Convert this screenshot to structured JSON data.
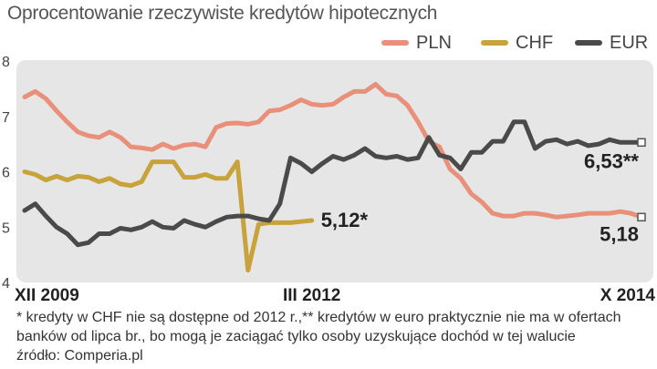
{
  "title": "Oprocentowanie rzeczywiste kredytów hipotecznych",
  "footnote": {
    "line1": "* kredyty w CHF nie są dostępne od 2012 r.,** kredytów w euro praktycznie nie ma w ofertach",
    "line2": "banków od lipca br., bo mogą je zaciągać tylko osoby uzyskujące dochód w tej walucie",
    "source": "źródło: Comperia.pl"
  },
  "chart_data": {
    "type": "line",
    "title": "Oprocentowanie rzeczywiste kredytów hipotecznych",
    "ylim": [
      4,
      8
    ],
    "yticks": [
      4,
      5,
      6,
      7,
      8
    ],
    "xlim": [
      0,
      58
    ],
    "x_tick_labels": [
      {
        "x": 0,
        "label": "XII 2009"
      },
      {
        "x": 27,
        "label": "III 2012"
      },
      {
        "x": 58,
        "label": "X 2014"
      }
    ],
    "legend_position": "top-right",
    "grid": false,
    "series": [
      {
        "name": "PLN",
        "color": "#e9907a",
        "x": [
          0,
          1,
          2,
          3,
          4,
          5,
          6,
          7,
          8,
          9,
          10,
          11,
          12,
          13,
          14,
          15,
          16,
          17,
          18,
          19,
          20,
          21,
          22,
          23,
          24,
          25,
          26,
          27,
          28,
          29,
          30,
          31,
          32,
          33,
          34,
          35,
          36,
          37,
          38,
          39,
          40,
          41,
          42,
          43,
          44,
          45,
          46,
          47,
          48,
          49,
          50,
          51,
          52,
          53,
          54,
          55,
          56,
          57,
          58
        ],
        "values": [
          7.35,
          7.45,
          7.32,
          7.1,
          6.9,
          6.72,
          6.65,
          6.62,
          6.72,
          6.62,
          6.45,
          6.43,
          6.4,
          6.5,
          6.42,
          6.48,
          6.5,
          6.45,
          6.8,
          6.87,
          6.88,
          6.86,
          6.9,
          7.1,
          7.12,
          7.2,
          7.3,
          7.22,
          7.2,
          7.22,
          7.35,
          7.45,
          7.45,
          7.58,
          7.4,
          7.37,
          7.2,
          6.9,
          6.55,
          6.45,
          6.05,
          5.88,
          5.6,
          5.45,
          5.25,
          5.2,
          5.2,
          5.25,
          5.25,
          5.22,
          5.18,
          5.2,
          5.22,
          5.25,
          5.25,
          5.25,
          5.28,
          5.25,
          5.18
        ],
        "end_label": "5,18"
      },
      {
        "name": "CHF",
        "color": "#c8a23a",
        "x": [
          0,
          1,
          2,
          3,
          4,
          5,
          6,
          7,
          8,
          9,
          10,
          11,
          12,
          13,
          14,
          15,
          16,
          17,
          18,
          19,
          20,
          21,
          22,
          23,
          24,
          25,
          26,
          27
        ],
        "values": [
          6.0,
          5.95,
          5.85,
          5.92,
          5.85,
          5.92,
          5.9,
          5.82,
          5.88,
          5.78,
          5.75,
          5.82,
          6.18,
          6.18,
          6.18,
          5.9,
          5.9,
          5.95,
          5.88,
          5.88,
          6.18,
          4.22,
          5.05,
          5.08,
          5.08,
          5.08,
          5.1,
          5.12
        ],
        "end_label": "5,12*"
      },
      {
        "name": "EUR",
        "color": "#4a4a4a",
        "x": [
          0,
          1,
          2,
          3,
          4,
          5,
          6,
          7,
          8,
          9,
          10,
          11,
          12,
          13,
          14,
          15,
          16,
          17,
          18,
          19,
          20,
          21,
          22,
          23,
          24,
          25,
          26,
          27,
          28,
          29,
          30,
          31,
          32,
          33,
          34,
          35,
          36,
          37,
          38,
          39,
          40,
          41,
          42,
          43,
          44,
          45,
          46,
          47,
          48,
          49,
          50,
          51,
          52,
          53,
          54,
          55,
          56,
          57,
          58
        ],
        "values": [
          5.3,
          5.42,
          5.2,
          5.0,
          4.88,
          4.68,
          4.72,
          4.88,
          4.88,
          4.98,
          4.95,
          5.0,
          5.1,
          5.0,
          4.98,
          5.12,
          5.05,
          5.0,
          5.1,
          5.18,
          5.2,
          5.2,
          5.15,
          5.12,
          5.42,
          6.25,
          6.15,
          6.0,
          6.15,
          6.28,
          6.22,
          6.3,
          6.42,
          6.28,
          6.25,
          6.28,
          6.22,
          6.25,
          6.62,
          6.3,
          6.25,
          6.05,
          6.35,
          6.35,
          6.55,
          6.55,
          6.9,
          6.9,
          6.42,
          6.55,
          6.58,
          6.5,
          6.55,
          6.47,
          6.5,
          6.58,
          6.53,
          6.53,
          6.53
        ],
        "end_label": "6,53**"
      }
    ]
  }
}
